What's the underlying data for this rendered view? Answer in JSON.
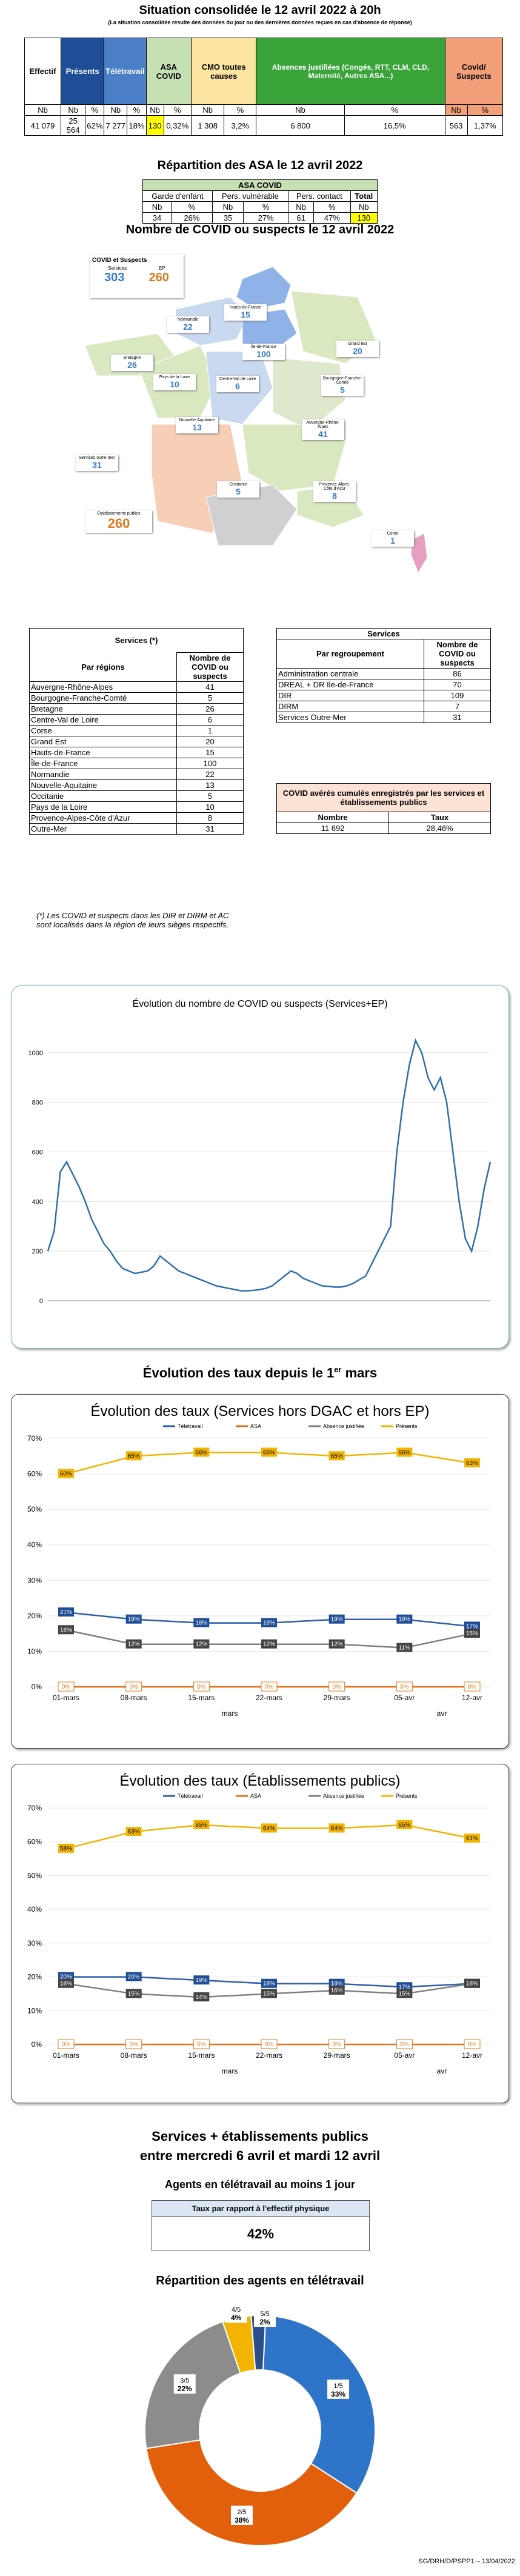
{
  "header": {
    "title": "Situation consolidée le 12 avril 2022 à 20h",
    "subtitle": "(La situation consolidée résulte des données du jour ou des dernières données reçues en cas d'absence de réponse)"
  },
  "main_table": {
    "cols": [
      "Effectif",
      "Présents",
      "Télétravail",
      "ASA COVID",
      "CMO toutes causes",
      "Absences justifiées (Congés, RTT, CLM, CLD, Maternité, Autres ASA...)",
      "Covid/ Suspects"
    ],
    "subheads": [
      "Nb",
      "Nb",
      "%",
      "Nb",
      "%",
      "Nb",
      "%",
      "Nb",
      "%",
      "Nb",
      "%",
      "Nb",
      "%"
    ],
    "values": [
      "41 079",
      "25 564",
      "62%",
      "7 277",
      "18%",
      "130",
      "0,32%",
      "1 308",
      "3,2%",
      "6 800",
      "16,5%",
      "563",
      "1,37%"
    ]
  },
  "asa": {
    "title": "Répartition des ASA le 12 avril 2022",
    "header": "ASA COVID",
    "groups": [
      "Garde d'enfant",
      "Pers. vulnérable",
      "Pers. contact",
      "Total"
    ],
    "subheads": [
      "Nb",
      "%",
      "Nb",
      "%",
      "Nb",
      "%",
      "Nb"
    ],
    "values": [
      "34",
      "26%",
      "35",
      "27%",
      "61",
      "47%",
      "130"
    ]
  },
  "map": {
    "title": "Nombre de COVID ou suspects le 12 avril 2022",
    "legend_title": "COVID et Suspects",
    "legend_services": "Services",
    "legend_ep": "EP",
    "legend_services_value": "303",
    "legend_ep_value": "260",
    "regions": [
      {
        "name": "Hauts-de-France",
        "value": "15"
      },
      {
        "name": "Normandie",
        "value": "22"
      },
      {
        "name": "Île-de-France",
        "value": "100"
      },
      {
        "name": "Grand Est",
        "value": "20"
      },
      {
        "name": "Bretagne",
        "value": "26"
      },
      {
        "name": "Pays de la Loire",
        "value": "10"
      },
      {
        "name": "Centre-Val de Loire",
        "value": "6"
      },
      {
        "name": "Bourgogne-Franche-Comté",
        "value": "5"
      },
      {
        "name": "Nouvelle-Aquitaine",
        "value": "13"
      },
      {
        "name": "Auvergne-Rhône-Alpes",
        "value": "41"
      },
      {
        "name": "Occitanie",
        "value": "5"
      },
      {
        "name": "Provence-Alpes-Côte d'Azur",
        "value": "8"
      },
      {
        "name": "Corse",
        "value": "1"
      },
      {
        "name": "Services outre-mer",
        "value": "31"
      },
      {
        "name": "Établissements publics",
        "value": "260"
      }
    ]
  },
  "regions_table": {
    "title": "Services (*)",
    "col1": "Par régions",
    "col2": "Nombre de COVID ou suspects",
    "rows": [
      [
        "Auvergne-Rhône-Alpes",
        "41"
      ],
      [
        "Bourgogne-Franche-Comté",
        "5"
      ],
      [
        "Bretagne",
        "26"
      ],
      [
        "Centre-Val de Loire",
        "6"
      ],
      [
        "Corse",
        "1"
      ],
      [
        "Grand Est",
        "20"
      ],
      [
        "Hauts-de-France",
        "15"
      ],
      [
        "Île-de-France",
        "100"
      ],
      [
        "Normandie",
        "22"
      ],
      [
        "Nouvelle-Aquitaine",
        "13"
      ],
      [
        "Occitanie",
        "5"
      ],
      [
        "Pays de la Loire",
        "10"
      ],
      [
        "Provence-Alpes-Côte d'Azur",
        "8"
      ],
      [
        "Outre-Mer",
        "31"
      ]
    ],
    "note": "(*) Les COVID et suspects dans les DIR et DIRM et AC sont localisés dans la région de leurs sièges respectifs."
  },
  "services_table": {
    "title": "Services",
    "col1": "Par regroupement",
    "col2": "Nombre de COVID ou suspects",
    "rows": [
      [
        "Administration centrale",
        "86"
      ],
      [
        "DREAL + DR Ile-de-France",
        "70"
      ],
      [
        "DIR",
        "109"
      ],
      [
        "DIRM",
        "7"
      ],
      [
        "Services Outre-Mer",
        "31"
      ]
    ]
  },
  "cumul": {
    "title": "COVID avérés cumulés enregistrés par les services et établissements publics",
    "col1": "Nombre",
    "col2": "Taux",
    "nombre": "11 692",
    "taux": "28,46%"
  },
  "evolution_chart": {
    "title": "Évolution du nombre de COVID ou suspects (Services+EP)",
    "y_ticks": [
      "0",
      "200",
      "400",
      "600",
      "800",
      "1000"
    ]
  },
  "taux_section": {
    "title_pre": "Évolution des taux depuis le 1",
    "title_sup": "er",
    "title_post": " mars"
  },
  "chart_data": [
    {
      "type": "line",
      "title": "Évolution du nombre de COVID ou suspects (Services+EP)",
      "ylim": [
        0,
        1100
      ],
      "series": [
        {
          "name": "",
          "values": [
            200,
            280,
            520,
            560,
            510,
            460,
            400,
            330,
            280,
            230,
            200,
            160,
            130,
            120,
            110,
            115,
            120,
            140,
            180,
            160,
            140,
            120,
            110,
            100,
            90,
            80,
            70,
            60,
            55,
            50,
            45,
            40,
            40,
            42,
            45,
            50,
            60,
            80,
            100,
            120,
            110,
            90,
            80,
            70,
            60,
            58,
            55,
            55,
            60,
            70,
            85,
            100,
            150,
            200,
            250,
            300,
            600,
            800,
            950,
            1050,
            1000,
            900,
            850,
            900,
            800,
            600,
            400,
            250,
            200,
            300,
            450,
            560
          ]
        }
      ]
    },
    {
      "type": "line",
      "title": "Évolution des taux (Services hors DGAC et hors EP)",
      "categories": [
        "01-mars",
        "08-mars",
        "15-mars",
        "22-mars",
        "29-mars",
        "05-avr",
        "12-avr"
      ],
      "ylim": [
        0,
        70
      ],
      "series": [
        {
          "name": "Télétravail",
          "values": [
            21,
            19,
            18,
            18,
            19,
            19,
            17
          ]
        },
        {
          "name": "ASA",
          "values": [
            0,
            0,
            0,
            0,
            0,
            0,
            0
          ]
        },
        {
          "name": "Absence justifiée",
          "values": [
            16,
            12,
            12,
            12,
            12,
            11,
            15
          ]
        },
        {
          "name": "Présents",
          "values": [
            60,
            65,
            66,
            66,
            65,
            66,
            63
          ]
        }
      ]
    },
    {
      "type": "line",
      "title": "Évolution des taux (Établissements publics)",
      "categories": [
        "01-mars",
        "08-mars",
        "15-mars",
        "22-mars",
        "29-mars",
        "05-avr",
        "12-avr"
      ],
      "ylim": [
        0,
        70
      ],
      "series": [
        {
          "name": "Télétravail",
          "values": [
            20,
            20,
            19,
            18,
            18,
            17,
            18
          ]
        },
        {
          "name": "ASA",
          "values": [
            0,
            0,
            0,
            0,
            0,
            0,
            0
          ]
        },
        {
          "name": "Absence justifiée",
          "values": [
            18,
            15,
            14,
            15,
            16,
            15,
            18
          ]
        },
        {
          "name": "Présents",
          "values": [
            58,
            63,
            65,
            64,
            64,
            65,
            61
          ]
        }
      ]
    },
    {
      "type": "pie",
      "title": "Répartition des agents en télétravail",
      "categories": [
        "1/5",
        "2/5",
        "3/5",
        "4/5",
        "5/5"
      ],
      "values": [
        33,
        38,
        22,
        4,
        2
      ]
    }
  ],
  "taux_chart1": {
    "title": "Évolution des taux (Services hors DGAC et hors EP)",
    "month1": "mars",
    "month2": "avr"
  },
  "taux_chart2": {
    "title": "Évolution des taux (Établissements publics)",
    "month1": "mars",
    "month2": "avr"
  },
  "legend": [
    "Télétravail",
    "ASA",
    "Absence justifiée",
    "Présents"
  ],
  "teletravail": {
    "title_line1": "Services + établissements publics",
    "title_line2": "entre mercredi 6 avril et mardi 12 avril",
    "sub": "Agents en télétravail au moins 1 jour",
    "box_label": "Taux par rapport à l'effectif physique",
    "box_value": "42%",
    "pie_title": "Répartition des agents en télétravail"
  },
  "footer": "SG/DRH/D/PSPP1 – 13/04/2022",
  "colors": {
    "presents": "#1f4e96",
    "teletravail": "#4a7fc8",
    "asa": "#c6e0b4",
    "cmo": "#fbe5a0",
    "absences": "#3aa43a",
    "covid": "#f2a079",
    "yellow": "#ffff00",
    "tele_line": "#2e5fa8",
    "asa_line": "#e0701a",
    "abs_line": "#7f7f7f",
    "pres_line": "#f2b400"
  }
}
